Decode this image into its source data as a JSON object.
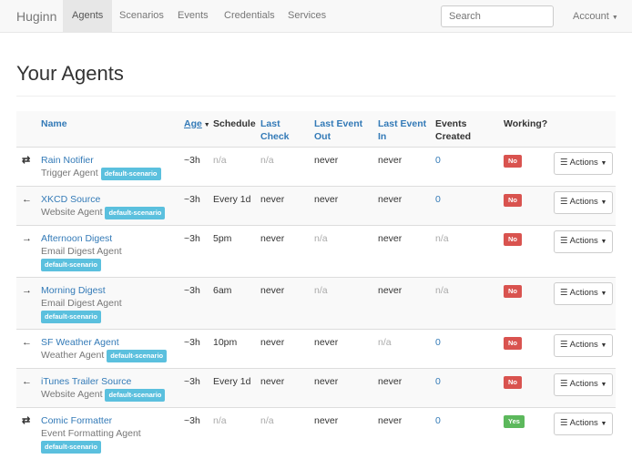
{
  "nav": {
    "brand": "Huginn",
    "items": [
      "Agents",
      "Scenarios",
      "Events",
      "Credentials",
      "Services"
    ],
    "active": "Agents",
    "search_placeholder": "Search",
    "account": "Account"
  },
  "page_title": "Your Agents",
  "table": {
    "headers": {
      "name": "Name",
      "age": "Age",
      "schedule": "Schedule",
      "last_check": "Last Check",
      "last_event_out": "Last Event Out",
      "last_event_in": "Last Event In",
      "events_created": "Events Created",
      "working": "Working?"
    },
    "sort": {
      "column": "Age",
      "direction": "desc"
    },
    "actions_label": "Actions",
    "rows": [
      {
        "icon": "⇄",
        "name": "Rain Notifier",
        "type": "Trigger Agent",
        "scenario": "default-scenario",
        "age": "~3h",
        "schedule": "n/a",
        "last_check": "n/a",
        "out": "never",
        "in": "never",
        "created": "0",
        "working": "No"
      },
      {
        "icon": "←",
        "name": "XKCD Source",
        "type": "Website Agent",
        "scenario": "default-scenario",
        "age": "~3h",
        "schedule": "Every 1d",
        "last_check": "never",
        "out": "never",
        "in": "never",
        "created": "0",
        "working": "No"
      },
      {
        "icon": "→",
        "name": "Afternoon Digest",
        "type": "Email Digest Agent",
        "scenario": "default-scenario",
        "age": "~3h",
        "schedule": "5pm",
        "last_check": "never",
        "out": "n/a",
        "in": "never",
        "created": "n/a",
        "working": "No"
      },
      {
        "icon": "→",
        "name": "Morning Digest",
        "type": "Email Digest Agent",
        "scenario": "default-scenario",
        "age": "~3h",
        "schedule": "6am",
        "last_check": "never",
        "out": "n/a",
        "in": "never",
        "created": "n/a",
        "working": "No"
      },
      {
        "icon": "←",
        "name": "SF Weather Agent",
        "type": "Weather Agent",
        "scenario": "default-scenario",
        "age": "~3h",
        "schedule": "10pm",
        "last_check": "never",
        "out": "never",
        "in": "n/a",
        "created": "0",
        "working": "No"
      },
      {
        "icon": "←",
        "name": "iTunes Trailer Source",
        "type": "Website Agent",
        "scenario": "default-scenario",
        "age": "~3h",
        "schedule": "Every 1d",
        "last_check": "never",
        "out": "never",
        "in": "never",
        "created": "0",
        "working": "No"
      },
      {
        "icon": "⇄",
        "name": "Comic Formatter",
        "type": "Event Formatting Agent",
        "scenario": "default-scenario",
        "age": "~3h",
        "schedule": "n/a",
        "last_check": "n/a",
        "out": "never",
        "in": "never",
        "created": "0",
        "working": "Yes"
      }
    ]
  }
}
